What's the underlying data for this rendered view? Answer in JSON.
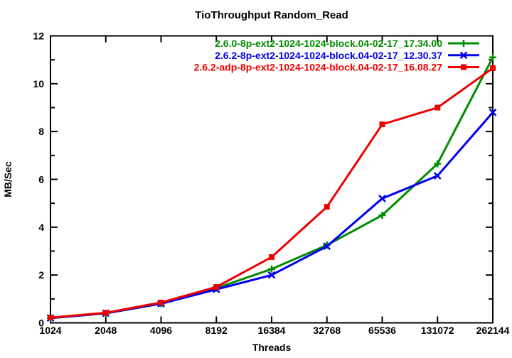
{
  "chart_data": {
    "type": "line",
    "title": "TioThroughput Random_Read",
    "xlabel": "Threads",
    "ylabel": "MB/Sec",
    "x_scale": "log2",
    "categories": [
      "1024",
      "2048",
      "4096",
      "8192",
      "16384",
      "32768",
      "65536",
      "131072",
      "262144"
    ],
    "ylim": [
      0,
      12
    ],
    "y_ticks": [
      "0",
      "2",
      "4",
      "6",
      "8",
      "10",
      "12"
    ],
    "y_minor_step": 1,
    "grid": false,
    "legend_position": "top-right-inside",
    "border_color": "#000000",
    "series": [
      {
        "name": "2.6.0-8p-ext2-1024-1024-block.04-02-17_17.34.00",
        "color": "#008C00",
        "marker": "plus",
        "values": [
          0.2,
          0.4,
          0.8,
          1.45,
          2.25,
          3.25,
          4.5,
          6.65,
          11.1
        ]
      },
      {
        "name": "2.6.2-8p-ext2-1024-1024-block.04-02-17_12.30.37",
        "color": "#0000EE",
        "marker": "x",
        "values": [
          0.2,
          0.4,
          0.8,
          1.4,
          2.0,
          3.2,
          5.2,
          6.15,
          8.8
        ]
      },
      {
        "name": "2.6.2-adp-8p-ext2-1024-1024-block.04-02-17_16.08.27",
        "color": "#EE0000",
        "marker": "square",
        "values": [
          0.22,
          0.42,
          0.85,
          1.5,
          2.75,
          4.85,
          8.3,
          9.0,
          10.65
        ]
      }
    ]
  }
}
